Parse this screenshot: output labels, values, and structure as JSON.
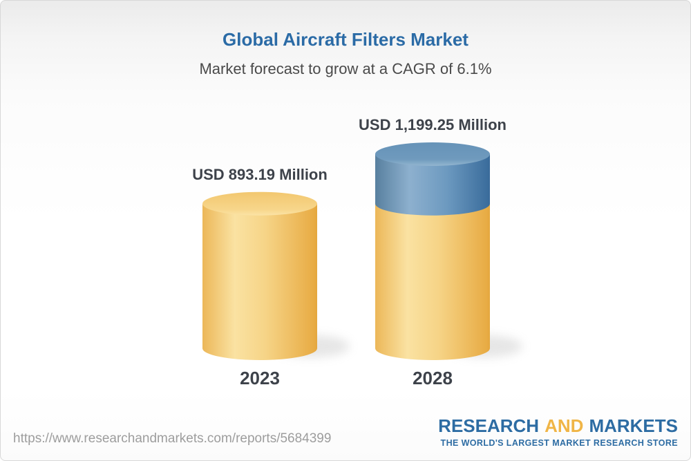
{
  "header": {
    "title": "Global Aircraft Filters Market",
    "subtitle": "Market forecast to grow at a CAGR of 6.1%"
  },
  "chart_data": {
    "type": "bar",
    "style": "3d-cylinder",
    "categories": [
      "2023",
      "2028"
    ],
    "values": [
      893.19,
      1199.25
    ],
    "value_labels": [
      "USD 893.19 Million",
      "USD 1,199.25 Million"
    ],
    "unit": "USD Million",
    "cagr_percent": 6.1,
    "ylim": [
      0,
      1199.25
    ],
    "growth_segment": {
      "category": "2028",
      "from": 893.19,
      "to": 1199.25
    },
    "colors": {
      "base_bar": "#f3c66a",
      "growth_bar": "#6694b9",
      "label_text": "#3d424a"
    },
    "legend": "none",
    "grid": false,
    "title": "Global Aircraft Filters Market",
    "subtitle": "Market forecast to grow at a CAGR of 6.1%"
  },
  "footer": {
    "url": "https://www.researchandmarkets.com/reports/5684399",
    "logo": {
      "word1": "RESEARCH",
      "word2": "AND",
      "word3": "MARKETS",
      "tagline": "THE WORLD'S LARGEST MARKET RESEARCH STORE",
      "blue": "#2d6ca3",
      "yellow": "#f0b546"
    }
  },
  "theme": {
    "title_color": "#2b6ba6",
    "subtitle_color": "#4a4a4a",
    "url_color": "#9d9d9d",
    "card_border": "#d8d8d8"
  }
}
